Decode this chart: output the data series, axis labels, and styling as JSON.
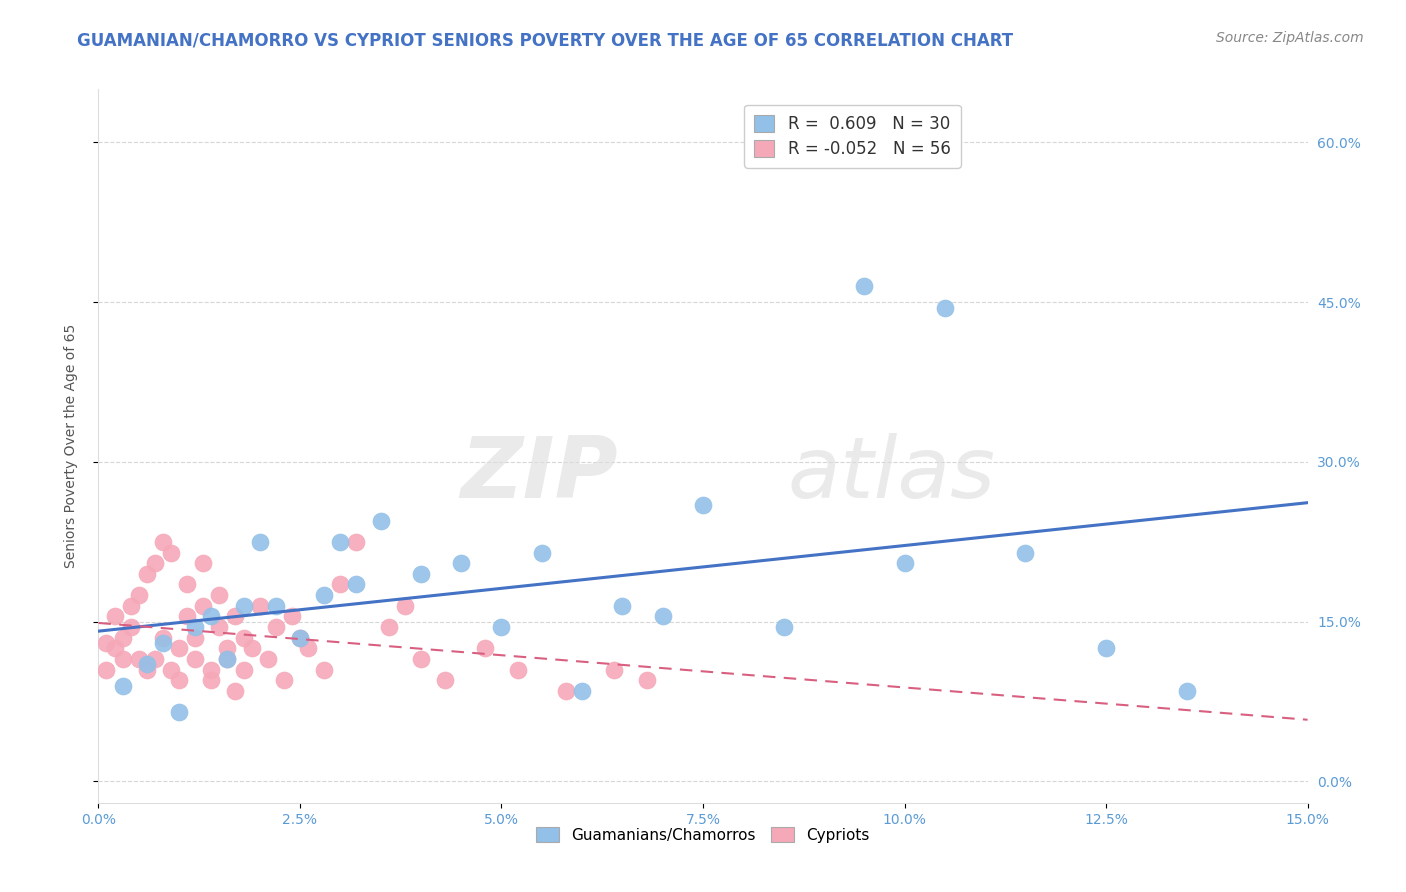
{
  "title": "GUAMANIAN/CHAMORRO VS CYPRIOT SENIORS POVERTY OVER THE AGE OF 65 CORRELATION CHART",
  "source": "Source: ZipAtlas.com",
  "ylabel": "Seniors Poverty Over the Age of 65",
  "legend_labels": [
    "Guamanians/Chamorros",
    "Cypriots"
  ],
  "r_guam": 0.609,
  "n_guam": 30,
  "r_cypriot": -0.052,
  "n_cypriot": 56,
  "scatter_guam_x": [
    0.003,
    0.006,
    0.008,
    0.01,
    0.012,
    0.014,
    0.016,
    0.018,
    0.02,
    0.022,
    0.025,
    0.028,
    0.03,
    0.032,
    0.035,
    0.04,
    0.045,
    0.05,
    0.055,
    0.06,
    0.065,
    0.07,
    0.075,
    0.085,
    0.095,
    0.1,
    0.105,
    0.115,
    0.125,
    0.135
  ],
  "scatter_guam_y": [
    0.09,
    0.11,
    0.13,
    0.065,
    0.145,
    0.155,
    0.115,
    0.165,
    0.225,
    0.165,
    0.135,
    0.175,
    0.225,
    0.185,
    0.245,
    0.195,
    0.205,
    0.145,
    0.215,
    0.085,
    0.165,
    0.155,
    0.26,
    0.145,
    0.465,
    0.205,
    0.445,
    0.215,
    0.125,
    0.085
  ],
  "scatter_cypriot_x": [
    0.001,
    0.001,
    0.002,
    0.002,
    0.003,
    0.003,
    0.004,
    0.004,
    0.005,
    0.005,
    0.006,
    0.006,
    0.007,
    0.007,
    0.008,
    0.008,
    0.009,
    0.009,
    0.01,
    0.01,
    0.011,
    0.011,
    0.012,
    0.012,
    0.013,
    0.013,
    0.014,
    0.014,
    0.015,
    0.015,
    0.016,
    0.016,
    0.017,
    0.017,
    0.018,
    0.018,
    0.019,
    0.02,
    0.021,
    0.022,
    0.023,
    0.024,
    0.025,
    0.026,
    0.028,
    0.03,
    0.032,
    0.036,
    0.038,
    0.04,
    0.043,
    0.048,
    0.052,
    0.058,
    0.064,
    0.068
  ],
  "scatter_cypriot_y": [
    0.105,
    0.13,
    0.125,
    0.155,
    0.115,
    0.135,
    0.145,
    0.165,
    0.115,
    0.175,
    0.105,
    0.195,
    0.205,
    0.115,
    0.225,
    0.135,
    0.215,
    0.105,
    0.095,
    0.125,
    0.155,
    0.185,
    0.115,
    0.135,
    0.165,
    0.205,
    0.105,
    0.095,
    0.175,
    0.145,
    0.125,
    0.115,
    0.085,
    0.155,
    0.105,
    0.135,
    0.125,
    0.165,
    0.115,
    0.145,
    0.095,
    0.155,
    0.135,
    0.125,
    0.105,
    0.185,
    0.225,
    0.145,
    0.165,
    0.115,
    0.095,
    0.125,
    0.105,
    0.085,
    0.105,
    0.095
  ],
  "xlim": [
    0.0,
    0.15
  ],
  "ylim": [
    -0.02,
    0.65
  ],
  "color_guam": "#92C0E8",
  "color_cypriot": "#F5A8B8",
  "trendline_guam_color": "#4472C4",
  "trendline_cypriot_color": "#D95F80",
  "background_color": "#ffffff",
  "watermark_zip": "ZIP",
  "watermark_atlas": "atlas",
  "title_color": "#4472C4",
  "title_fontsize": 12,
  "axis_label_fontsize": 10,
  "tick_fontsize": 10,
  "source_fontsize": 10
}
